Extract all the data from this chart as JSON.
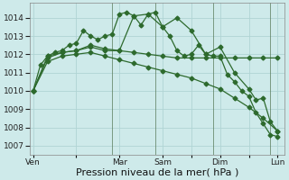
{
  "bg_color": "#ceeaea",
  "grid_color": "#b0d4d4",
  "line_color": "#2d6a2d",
  "marker_color": "#2d6a2d",
  "ylim": [
    1006.5,
    1014.8
  ],
  "yticks": [
    1007,
    1008,
    1009,
    1010,
    1011,
    1012,
    1013,
    1014
  ],
  "ytick_fontsize": 6.5,
  "xlabel": "Pression niveau de la mer( hPa )",
  "xlabel_fontsize": 8,
  "day_labels": [
    "Ven",
    "",
    "Mar",
    "Sam",
    "",
    "Dim",
    "",
    "Lun"
  ],
  "day_positions": [
    0,
    6,
    12,
    18,
    22,
    26,
    30,
    34
  ],
  "vline_positions": [
    11,
    17,
    25,
    33
  ],
  "vline_color": "#557755",
  "s1_x": [
    0,
    1,
    2,
    3,
    4,
    5,
    6,
    7,
    8,
    9,
    10,
    11,
    12,
    13,
    14,
    15,
    16,
    17,
    18,
    19,
    20,
    21,
    22,
    23,
    24,
    25,
    26,
    27,
    28,
    29,
    30,
    31,
    32,
    33,
    34
  ],
  "s1_y": [
    1010.0,
    1011.4,
    1011.9,
    1012.1,
    1012.2,
    1012.5,
    1012.6,
    1013.3,
    1013.0,
    1012.8,
    1013.0,
    1013.1,
    1014.2,
    1014.3,
    1014.1,
    1013.6,
    1014.2,
    1014.3,
    1013.5,
    1013.0,
    1012.2,
    1011.9,
    1012.0,
    1012.5,
    1012.0,
    1011.9,
    1011.9,
    1010.9,
    1010.5,
    1010.0,
    1009.7,
    1008.8,
    1008.2,
    1007.6,
    1007.5
  ],
  "s2_x": [
    0,
    2,
    4,
    6,
    8,
    10,
    12,
    14,
    16,
    18,
    20,
    22,
    24,
    26,
    28,
    30,
    32,
    34
  ],
  "s2_y": [
    1010.0,
    1011.9,
    1012.1,
    1012.2,
    1012.4,
    1012.2,
    1012.2,
    1012.1,
    1012.0,
    1011.9,
    1011.8,
    1011.8,
    1011.8,
    1011.8,
    1011.8,
    1011.8,
    1011.8,
    1011.8
  ],
  "s3_x": [
    0,
    2,
    4,
    6,
    8,
    10,
    12,
    14,
    16,
    18,
    20,
    22,
    24,
    26,
    28,
    30,
    32,
    34
  ],
  "s3_y": [
    1010.0,
    1011.6,
    1011.9,
    1012.0,
    1012.1,
    1011.9,
    1011.7,
    1011.5,
    1011.3,
    1011.1,
    1010.9,
    1010.7,
    1010.4,
    1010.1,
    1009.6,
    1009.1,
    1008.5,
    1007.8
  ],
  "s4_x": [
    0,
    2,
    4,
    6,
    8,
    10,
    12,
    14,
    16,
    18,
    20,
    22,
    24,
    26,
    28,
    30,
    31,
    32,
    33,
    34
  ],
  "s4_y": [
    1010.0,
    1011.8,
    1012.1,
    1012.2,
    1012.5,
    1012.3,
    1012.2,
    1014.1,
    1014.2,
    1013.5,
    1014.0,
    1013.3,
    1012.0,
    1012.4,
    1011.0,
    1010.1,
    1009.5,
    1009.6,
    1008.3,
    1007.8
  ]
}
